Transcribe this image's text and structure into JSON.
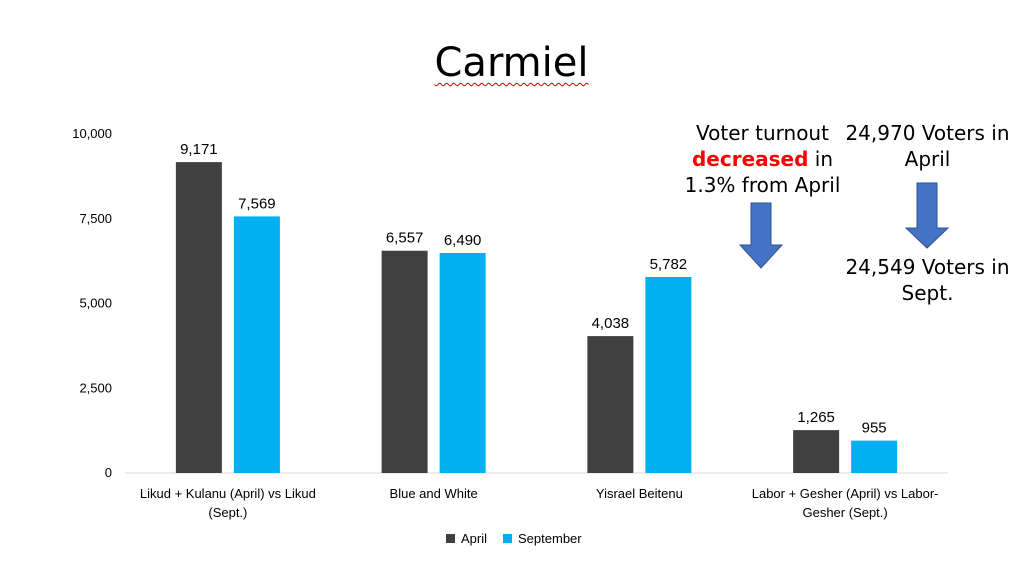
{
  "chart_data": {
    "type": "bar",
    "title": "Carmiel",
    "categories": [
      [
        "Likud + Kulanu (April) vs Likud",
        "(Sept.)"
      ],
      [
        "Blue and White"
      ],
      [
        "Yisrael Beitenu"
      ],
      [
        "Labor + Gesher (April) vs Labor-",
        "Gesher (Sept.)"
      ]
    ],
    "series": [
      {
        "name": "April",
        "color": "#404040",
        "values": [
          9171,
          6557,
          4038,
          1265
        ],
        "labels": [
          "9,171",
          "6,557",
          "4,038",
          "1,265"
        ]
      },
      {
        "name": "September",
        "color": "#00b0f0",
        "values": [
          7569,
          6490,
          5782,
          955
        ],
        "labels": [
          "7,569",
          "6,490",
          "5,782",
          "955"
        ]
      }
    ],
    "ylim": [
      0,
      10000
    ],
    "yticks": [
      0,
      2500,
      5000,
      7500,
      10000
    ],
    "ytick_labels": [
      "0",
      "2,500",
      "5,000",
      "7,500",
      "10,000"
    ],
    "xlabel": "",
    "ylabel": "",
    "legend_position": "bottom"
  },
  "annotations": {
    "turnout": {
      "line1": "Voter turnout",
      "emph": "decreased",
      "in_word": " in",
      "line3": "1.3% from April"
    },
    "voters": {
      "april_line1": "24,970 Voters in",
      "april_line2": "April",
      "sept_line1": "24,549 Voters in",
      "sept_line2": "Sept."
    },
    "arrow_color": "#4472c4"
  }
}
